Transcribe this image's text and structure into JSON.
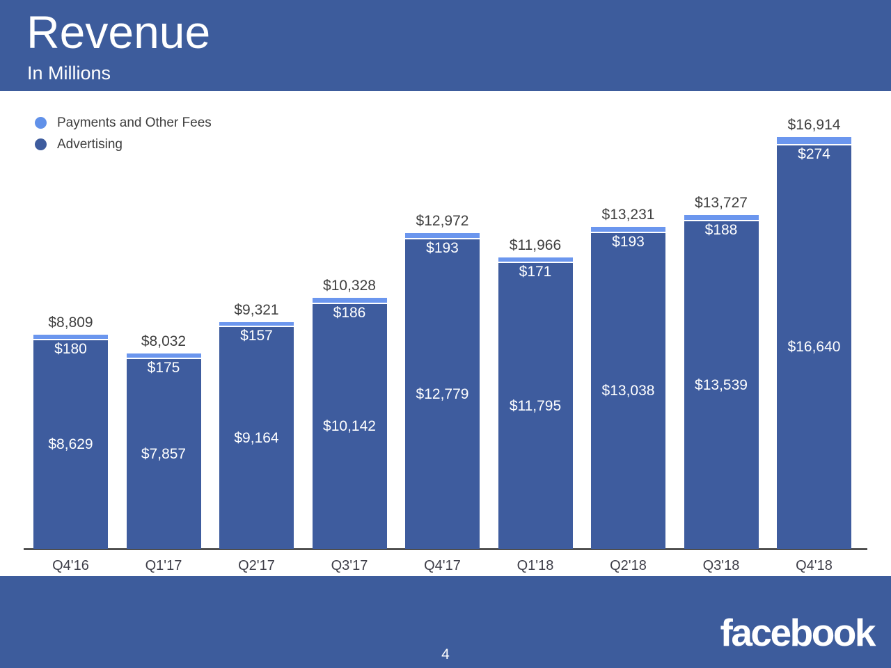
{
  "header": {
    "title": "Revenue",
    "subtitle": "In Millions"
  },
  "legend": {
    "items": [
      {
        "label": "Payments and Other Fees",
        "color": "#6191E9"
      },
      {
        "label": "Advertising",
        "color": "#3E5C9E"
      }
    ]
  },
  "colors": {
    "header_bg": "#3D5C9C",
    "footer_bg": "#3D5C9C",
    "bar_payments": "#6B96EE",
    "bar_advertising": "#3E5C9E",
    "segment_divider": "#FFFFFF",
    "label_dark": "#3F3F3F",
    "label_light": "#FFFFFF",
    "axis_line": "#212121"
  },
  "chart_data": {
    "type": "bar",
    "stacked": true,
    "title": "Revenue",
    "subtitle": "In Millions",
    "unit": "USD millions",
    "grid": false,
    "legend_position": "top-left",
    "categories": [
      "Q4'16",
      "Q1'17",
      "Q2'17",
      "Q3'17",
      "Q4'17",
      "Q1'18",
      "Q2'18",
      "Q3'18",
      "Q4'18"
    ],
    "series": [
      {
        "name": "Payments and Other Fees",
        "stack_position": "top",
        "color": "#6B96EE",
        "values": [
          180,
          175,
          157,
          186,
          193,
          171,
          193,
          188,
          274
        ],
        "labels": [
          "$180",
          "$175",
          "$157",
          "$186",
          "$193",
          "$171",
          "$193",
          "$188",
          "$274"
        ]
      },
      {
        "name": "Advertising",
        "stack_position": "bottom",
        "color": "#3E5C9E",
        "values": [
          8629,
          7857,
          9164,
          10142,
          12779,
          11795,
          13038,
          13539,
          16640
        ],
        "labels": [
          "$8,629",
          "$7,857",
          "$9,164",
          "$10,142",
          "$12,779",
          "$11,795",
          "$13,038",
          "$13,539",
          "$16,640"
        ]
      }
    ],
    "totals": [
      8809,
      8032,
      9321,
      10328,
      12972,
      11966,
      13231,
      13727,
      16914
    ],
    "total_labels": [
      "$8,809",
      "$8,032",
      "$9,321",
      "$10,328",
      "$12,972",
      "$11,966",
      "$13,231",
      "$13,727",
      "$16,914"
    ],
    "ylim": [
      0,
      16914
    ]
  },
  "footer": {
    "page_number": "4",
    "logo": "facebook"
  }
}
